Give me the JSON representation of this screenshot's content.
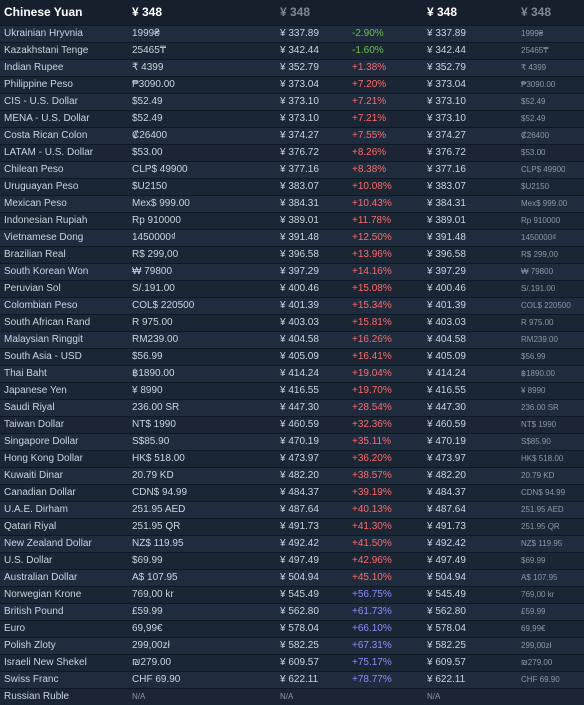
{
  "header": {
    "title": "Chinese Yuan",
    "col2": "¥ 348",
    "col3": "¥ 348",
    "col5": "¥ 348",
    "col6": "¥ 348"
  },
  "rows": [
    {
      "currency": "Ukrainian Hryvnia",
      "local": "1999₴",
      "conv": "¥ 337.89",
      "pct": "-2.90%",
      "cls": "neg",
      "conv2": "¥ 337.89",
      "local2": "1999₴"
    },
    {
      "currency": "Kazakhstani Tenge",
      "local": "25465₸",
      "conv": "¥ 342.44",
      "pct": "-1.60%",
      "cls": "neg",
      "conv2": "¥ 342.44",
      "local2": "25465₸"
    },
    {
      "currency": "Indian Rupee",
      "local": "₹ 4399",
      "conv": "¥ 352.79",
      "pct": "+1.38%",
      "cls": "pos",
      "conv2": "¥ 352.79",
      "local2": "₹ 4399"
    },
    {
      "currency": "Philippine Peso",
      "local": "₱3090.00",
      "conv": "¥ 373.04",
      "pct": "+7.20%",
      "cls": "pos",
      "conv2": "¥ 373.04",
      "local2": "₱3090.00"
    },
    {
      "currency": "CIS - U.S. Dollar",
      "local": "$52.49",
      "conv": "¥ 373.10",
      "pct": "+7.21%",
      "cls": "pos",
      "conv2": "¥ 373.10",
      "local2": "$52.49"
    },
    {
      "currency": "MENA - U.S. Dollar",
      "local": "$52.49",
      "conv": "¥ 373.10",
      "pct": "+7.21%",
      "cls": "pos",
      "conv2": "¥ 373.10",
      "local2": "$52.49"
    },
    {
      "currency": "Costa Rican Colon",
      "local": "₡26400",
      "conv": "¥ 374.27",
      "pct": "+7.55%",
      "cls": "pos",
      "conv2": "¥ 374.27",
      "local2": "₡26400"
    },
    {
      "currency": "LATAM - U.S. Dollar",
      "local": "$53.00",
      "conv": "¥ 376.72",
      "pct": "+8.26%",
      "cls": "pos",
      "conv2": "¥ 376.72",
      "local2": "$53.00"
    },
    {
      "currency": "Chilean Peso",
      "local": "CLP$ 49900",
      "conv": "¥ 377.16",
      "pct": "+8.38%",
      "cls": "pos",
      "conv2": "¥ 377.16",
      "local2": "CLP$ 49900"
    },
    {
      "currency": "Uruguayan Peso",
      "local": "$U2150",
      "conv": "¥ 383.07",
      "pct": "+10.08%",
      "cls": "pos",
      "conv2": "¥ 383.07",
      "local2": "$U2150"
    },
    {
      "currency": "Mexican Peso",
      "local": "Mex$ 999.00",
      "conv": "¥ 384.31",
      "pct": "+10.43%",
      "cls": "pos",
      "conv2": "¥ 384.31",
      "local2": "Mex$ 999.00"
    },
    {
      "currency": "Indonesian Rupiah",
      "local": "Rp 910000",
      "conv": "¥ 389.01",
      "pct": "+11.78%",
      "cls": "pos",
      "conv2": "¥ 389.01",
      "local2": "Rp 910000"
    },
    {
      "currency": "Vietnamese Dong",
      "local": "1450000₫",
      "conv": "¥ 391.48",
      "pct": "+12.50%",
      "cls": "pos",
      "conv2": "¥ 391.48",
      "local2": "1450000₫"
    },
    {
      "currency": "Brazilian Real",
      "local": "R$ 299,00",
      "conv": "¥ 396.58",
      "pct": "+13.96%",
      "cls": "pos",
      "conv2": "¥ 396.58",
      "local2": "R$ 299,00"
    },
    {
      "currency": "South Korean Won",
      "local": "₩ 79800",
      "conv": "¥ 397.29",
      "pct": "+14.16%",
      "cls": "pos",
      "conv2": "¥ 397.29",
      "local2": "₩ 79800"
    },
    {
      "currency": "Peruvian Sol",
      "local": "S/.191.00",
      "conv": "¥ 400.46",
      "pct": "+15.08%",
      "cls": "pos",
      "conv2": "¥ 400.46",
      "local2": "S/.191.00"
    },
    {
      "currency": "Colombian Peso",
      "local": "COL$ 220500",
      "conv": "¥ 401.39",
      "pct": "+15.34%",
      "cls": "pos",
      "conv2": "¥ 401.39",
      "local2": "COL$ 220500"
    },
    {
      "currency": "South African Rand",
      "local": "R 975.00",
      "conv": "¥ 403.03",
      "pct": "+15.81%",
      "cls": "pos",
      "conv2": "¥ 403.03",
      "local2": "R 975.00"
    },
    {
      "currency": "Malaysian Ringgit",
      "local": "RM239.00",
      "conv": "¥ 404.58",
      "pct": "+16.26%",
      "cls": "pos",
      "conv2": "¥ 404.58",
      "local2": "RM239.00"
    },
    {
      "currency": "South Asia - USD",
      "local": "$56.99",
      "conv": "¥ 405.09",
      "pct": "+16.41%",
      "cls": "pos",
      "conv2": "¥ 405.09",
      "local2": "$56.99"
    },
    {
      "currency": "Thai Baht",
      "local": "฿1890.00",
      "conv": "¥ 414.24",
      "pct": "+19.04%",
      "cls": "pos",
      "conv2": "¥ 414.24",
      "local2": "฿1890.00"
    },
    {
      "currency": "Japanese Yen",
      "local": "¥ 8990",
      "conv": "¥ 416.55",
      "pct": "+19.70%",
      "cls": "pos",
      "conv2": "¥ 416.55",
      "local2": "¥ 8990"
    },
    {
      "currency": "Saudi Riyal",
      "local": "236.00 SR",
      "conv": "¥ 447.30",
      "pct": "+28.54%",
      "cls": "pos",
      "conv2": "¥ 447.30",
      "local2": "236.00 SR"
    },
    {
      "currency": "Taiwan Dollar",
      "local": "NT$ 1990",
      "conv": "¥ 460.59",
      "pct": "+32.36%",
      "cls": "pos",
      "conv2": "¥ 460.59",
      "local2": "NT$ 1990"
    },
    {
      "currency": "Singapore Dollar",
      "local": "S$85.90",
      "conv": "¥ 470.19",
      "pct": "+35.11%",
      "cls": "pos",
      "conv2": "¥ 470.19",
      "local2": "S$85.90"
    },
    {
      "currency": "Hong Kong Dollar",
      "local": "HK$ 518.00",
      "conv": "¥ 473.97",
      "pct": "+36.20%",
      "cls": "pos",
      "conv2": "¥ 473.97",
      "local2": "HK$ 518.00"
    },
    {
      "currency": "Kuwaiti Dinar",
      "local": "20.79 KD",
      "conv": "¥ 482.20",
      "pct": "+38.57%",
      "cls": "pos",
      "conv2": "¥ 482.20",
      "local2": "20.79 KD"
    },
    {
      "currency": "Canadian Dollar",
      "local": "CDN$ 94.99",
      "conv": "¥ 484.37",
      "pct": "+39.19%",
      "cls": "pos",
      "conv2": "¥ 484.37",
      "local2": "CDN$ 94.99"
    },
    {
      "currency": "U.A.E. Dirham",
      "local": "251.95 AED",
      "conv": "¥ 487.64",
      "pct": "+40.13%",
      "cls": "pos",
      "conv2": "¥ 487.64",
      "local2": "251.95 AED"
    },
    {
      "currency": "Qatari Riyal",
      "local": "251.95 QR",
      "conv": "¥ 491.73",
      "pct": "+41.30%",
      "cls": "pos",
      "conv2": "¥ 491.73",
      "local2": "251.95 QR"
    },
    {
      "currency": "New Zealand Dollar",
      "local": "NZ$ 119.95",
      "conv": "¥ 492.42",
      "pct": "+41.50%",
      "cls": "pos",
      "conv2": "¥ 492.42",
      "local2": "NZ$ 119.95"
    },
    {
      "currency": "U.S. Dollar",
      "local": "$69.99",
      "conv": "¥ 497.49",
      "pct": "+42.96%",
      "cls": "pos",
      "conv2": "¥ 497.49",
      "local2": "$69.99"
    },
    {
      "currency": "Australian Dollar",
      "local": "A$ 107.95",
      "conv": "¥ 504.94",
      "pct": "+45.10%",
      "cls": "pos",
      "conv2": "¥ 504.94",
      "local2": "A$ 107.95"
    },
    {
      "currency": "Norwegian Krone",
      "local": "769,00 kr",
      "conv": "¥ 545.49",
      "pct": "+56.75%",
      "cls": "blue",
      "conv2": "¥ 545.49",
      "local2": "769,00 kr"
    },
    {
      "currency": "British Pound",
      "local": "£59.99",
      "conv": "¥ 562.80",
      "pct": "+61.73%",
      "cls": "blue",
      "conv2": "¥ 562.80",
      "local2": "£59.99"
    },
    {
      "currency": "Euro",
      "local": "69,99€",
      "conv": "¥ 578.04",
      "pct": "+66.10%",
      "cls": "blue",
      "conv2": "¥ 578.04",
      "local2": "69,99€"
    },
    {
      "currency": "Polish Zloty",
      "local": "299,00zł",
      "conv": "¥ 582.25",
      "pct": "+67.31%",
      "cls": "blue",
      "conv2": "¥ 582.25",
      "local2": "299,00zł"
    },
    {
      "currency": "Israeli New Shekel",
      "local": "₪279.00",
      "conv": "¥ 609.57",
      "pct": "+75.17%",
      "cls": "blue",
      "conv2": "¥ 609.57",
      "local2": "₪279.00"
    },
    {
      "currency": "Swiss Franc",
      "local": "CHF 69.90",
      "conv": "¥ 622.11",
      "pct": "+78.77%",
      "cls": "blue",
      "conv2": "¥ 622.11",
      "local2": "CHF 69.90"
    },
    {
      "currency": "Russian Ruble",
      "local": "N/A",
      "conv": "N/A",
      "pct": "",
      "cls": "",
      "conv2": "N/A",
      "local2": ""
    }
  ]
}
